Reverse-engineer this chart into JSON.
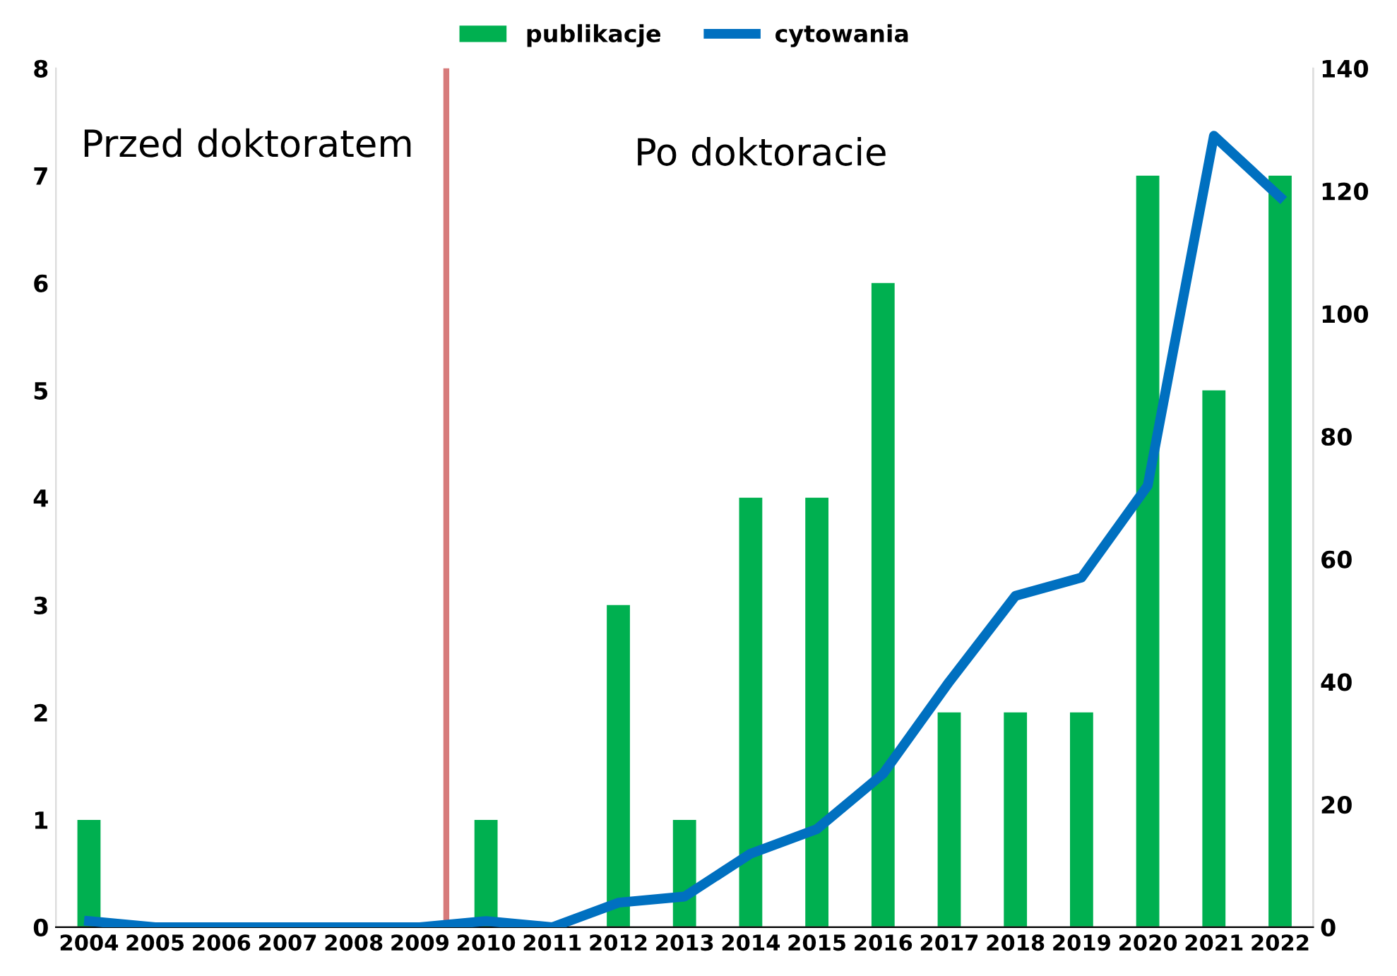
{
  "chart_data": {
    "type": "bar",
    "x": [
      2004,
      2005,
      2006,
      2007,
      2008,
      2009,
      2010,
      2011,
      2012,
      2013,
      2014,
      2015,
      2016,
      2017,
      2018,
      2019,
      2020,
      2021,
      2022
    ],
    "xlim": [
      2003.5,
      2022.5
    ],
    "xticks": [
      2004,
      2005,
      2006,
      2007,
      2008,
      2009,
      2010,
      2011,
      2012,
      2013,
      2014,
      2015,
      2016,
      2017,
      2018,
      2019,
      2020,
      2021,
      2022
    ],
    "series": [
      {
        "name": "publikacje",
        "color": "#00b050",
        "values": [
          1,
          0,
          0,
          0,
          0,
          0,
          1,
          0,
          3,
          1,
          4,
          4,
          6,
          2,
          2,
          2,
          7,
          5,
          7
        ]
      },
      {
        "name": "cytowania",
        "type": "line",
        "axis": "y2",
        "color": "#0070c0",
        "values": [
          1,
          0,
          0,
          0,
          0,
          0,
          1,
          0,
          4,
          5,
          12,
          16,
          25,
          40,
          54,
          57,
          72,
          129,
          119
        ]
      }
    ],
    "ylim": [
      0,
      8
    ],
    "yticks": [
      0,
      1,
      2,
      3,
      4,
      5,
      6,
      7,
      8
    ],
    "y2lim": [
      0,
      140
    ],
    "y2ticks": [
      0,
      20,
      40,
      60,
      80,
      100,
      120,
      140
    ],
    "ref_lines": [
      {
        "axis": "x",
        "value": 2009.4,
        "color": "#d77b7b"
      }
    ],
    "annotations": [
      "Przed doktoratem",
      "Po doktoracie"
    ],
    "legend": "top",
    "grid": false,
    "line_style": "solid",
    "marker": "none"
  }
}
